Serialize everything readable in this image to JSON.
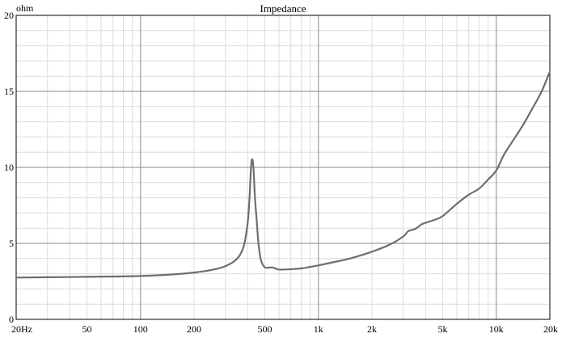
{
  "chart_data": {
    "type": "line",
    "title": "Impedance",
    "ylabel": "ohm",
    "xlabel": "",
    "x_scale": "log",
    "xlim": [
      20,
      20000
    ],
    "ylim": [
      0,
      20
    ],
    "grid": true,
    "x_ticks": [
      {
        "value": 20,
        "label": "20Hz"
      },
      {
        "value": 50,
        "label": "50"
      },
      {
        "value": 100,
        "label": "100"
      },
      {
        "value": 200,
        "label": "200"
      },
      {
        "value": 500,
        "label": "500"
      },
      {
        "value": 1000,
        "label": "1k"
      },
      {
        "value": 2000,
        "label": "2k"
      },
      {
        "value": 5000,
        "label": "5k"
      },
      {
        "value": 10000,
        "label": "10k"
      },
      {
        "value": 20000,
        "label": "20k"
      }
    ],
    "y_ticks": [
      {
        "value": 0,
        "label": "0"
      },
      {
        "value": 5,
        "label": "5"
      },
      {
        "value": 10,
        "label": "10"
      },
      {
        "value": 15,
        "label": "15"
      },
      {
        "value": 20,
        "label": "20"
      }
    ],
    "colors": {
      "line": "#6e6e6e",
      "grid_major": "#a0a0a0",
      "grid_minor": "#dcdcdc",
      "axes": "#000000"
    },
    "series": [
      {
        "x": [
          20,
          30,
          50,
          70,
          100,
          150,
          200,
          250,
          300,
          350,
          380,
          400,
          410,
          420,
          430,
          440,
          450,
          460,
          470,
          480,
          500,
          520,
          550,
          580,
          600,
          650,
          700,
          800,
          900,
          1000,
          1200,
          1500,
          2000,
          2500,
          3000,
          3200,
          3500,
          3800,
          4000,
          4500,
          5000,
          6000,
          7000,
          8000,
          9000,
          10000,
          11000,
          12000,
          14000,
          16000,
          18000,
          20000
        ],
        "y": [
          2.75,
          2.77,
          2.8,
          2.82,
          2.85,
          2.95,
          3.08,
          3.25,
          3.5,
          4.0,
          4.8,
          6.3,
          8.0,
          10.3,
          10.2,
          8.0,
          6.5,
          5.0,
          4.2,
          3.75,
          3.42,
          3.4,
          3.42,
          3.32,
          3.28,
          3.28,
          3.3,
          3.35,
          3.45,
          3.55,
          3.75,
          4.0,
          4.45,
          4.9,
          5.45,
          5.8,
          5.95,
          6.25,
          6.35,
          6.55,
          6.8,
          7.6,
          8.2,
          8.6,
          9.2,
          9.8,
          10.8,
          11.5,
          12.7,
          13.9,
          15.0,
          16.3
        ]
      }
    ]
  }
}
